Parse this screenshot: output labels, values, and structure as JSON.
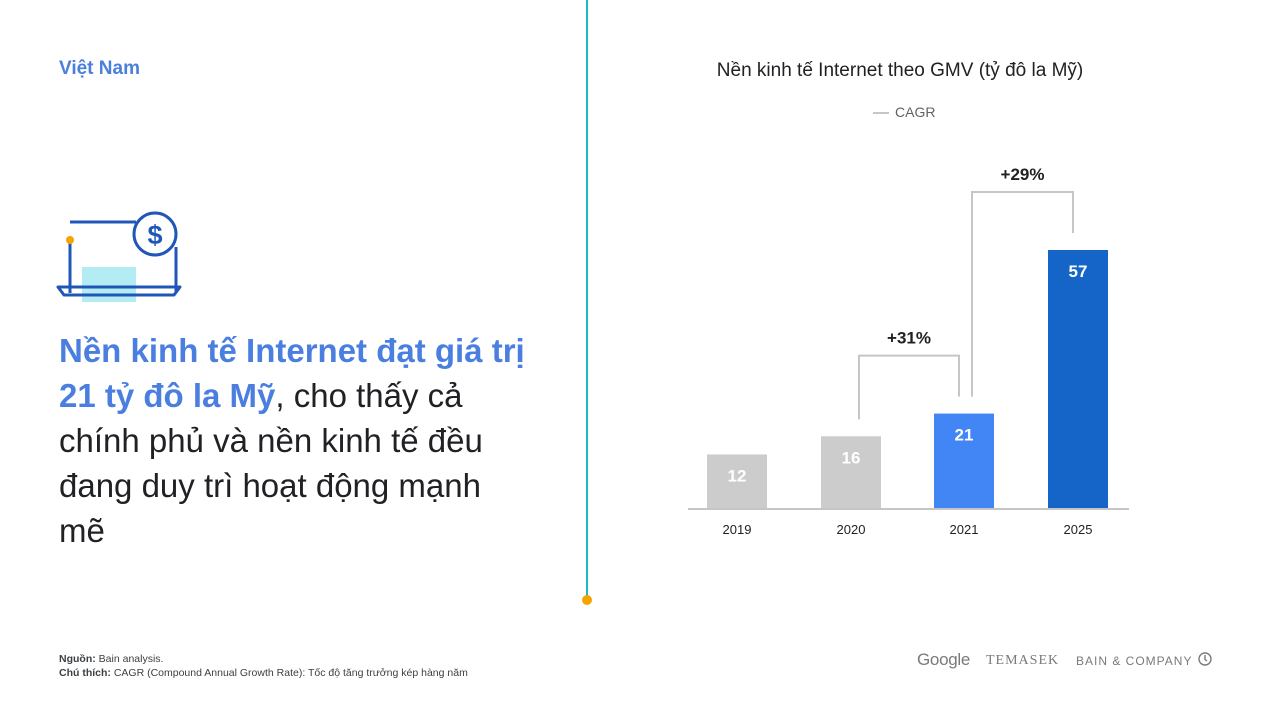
{
  "country": "Việt Nam",
  "headline": {
    "highlight": "Nền kinh tế Internet đạt giá trị 21 tỷ đô la Mỹ",
    "rest": ", cho thấy cả chính phủ và nền kinh tế đều đang duy trì hoạt động mạnh mẽ"
  },
  "icons": {
    "laptop": "laptop-dollar-icon",
    "bain_mark": "bain-compass-icon"
  },
  "colors": {
    "accent": "#4a7fe0",
    "teal": "#1fb8c4",
    "orange": "#f5a400",
    "grey_bar": "#cccccc",
    "blue_bar": "#4285f4",
    "dark_blue_bar": "#1565c8"
  },
  "chart_data": {
    "type": "bar",
    "title": "Nền kinh tế Internet theo GMV (tỷ đô la Mỹ)",
    "legend": "CAGR",
    "categories": [
      "2019",
      "2020",
      "2021",
      "2025"
    ],
    "values": [
      12,
      16,
      21,
      57
    ],
    "bar_colors": [
      "#cccccc",
      "#cccccc",
      "#4285f4",
      "#1565c8"
    ],
    "annotations": [
      {
        "label": "+31%",
        "from": "2020",
        "to": "2021"
      },
      {
        "label": "+29%",
        "from": "2021",
        "to": "2025"
      }
    ]
  },
  "footnote": {
    "source_label": "Nguồn:",
    "source_text": "Bain analysis.",
    "note_label": "Chú thích:",
    "note_text": "CAGR (Compound Annual Growth Rate): Tốc độ tăng trưởng kép hàng năm"
  },
  "logos": {
    "google": "Google",
    "temasek": "TEMASEK",
    "bain": "BAIN & COMPANY"
  }
}
